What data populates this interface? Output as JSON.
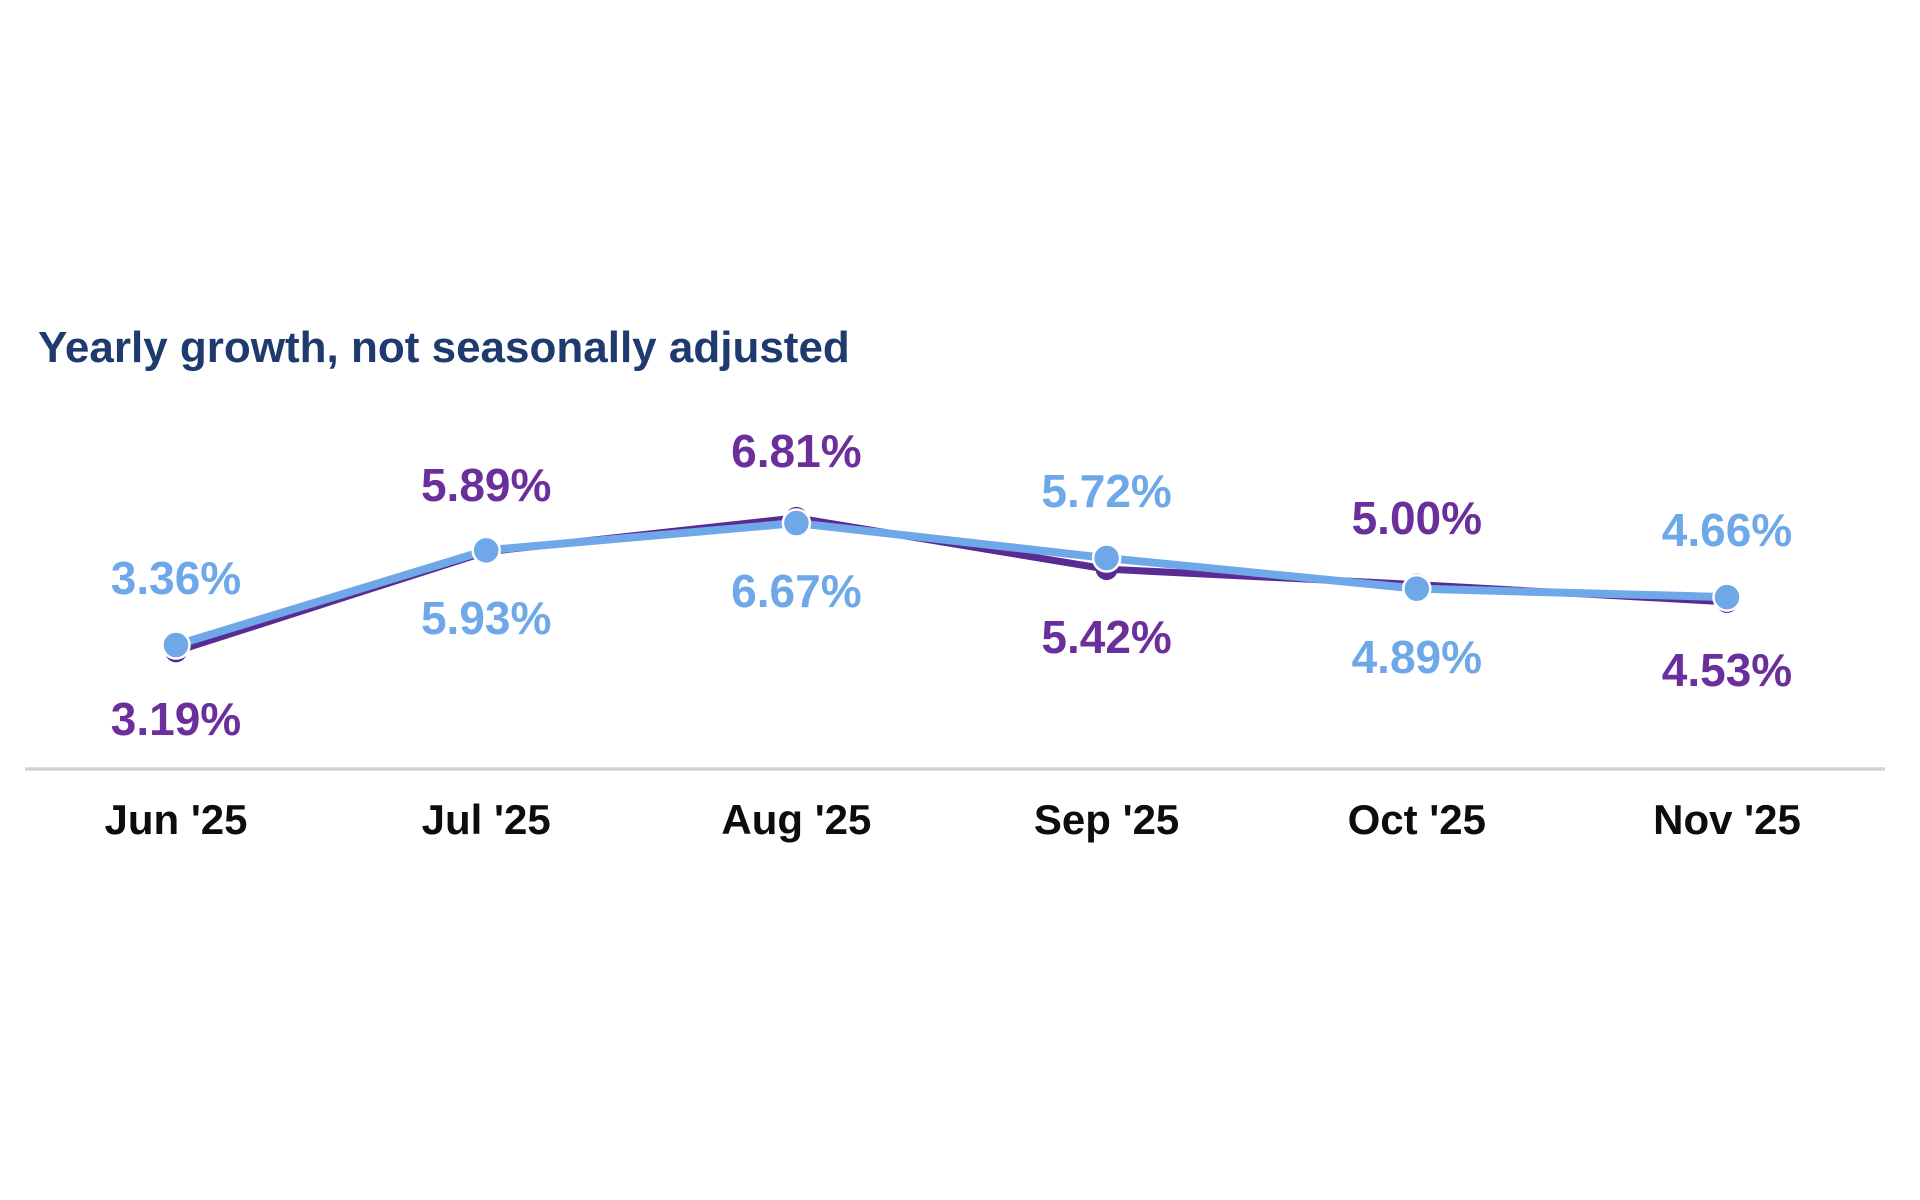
{
  "page": {
    "background": "#ffffff"
  },
  "chart_data": {
    "type": "line",
    "title": "Yearly growth, not seasonally adjusted",
    "title_color": "#1e3a6e",
    "categories": [
      "Jun '25",
      "Jul '25",
      "Aug '25",
      "Sep '25",
      "Oct '25",
      "Nov '25"
    ],
    "category_label_color": "#0d0d0d",
    "axis_line_color": "#d4d4d4",
    "grid": "off",
    "legend": "none",
    "ylim": [
      0,
      8
    ],
    "y_unit": "percent",
    "series": [
      {
        "name": "purple-series",
        "color": "#5b2b94",
        "label_color": "#6b2f9c",
        "values": [
          3.19,
          5.89,
          6.81,
          5.42,
          5.0,
          4.53
        ],
        "labels": [
          "3.19%",
          "5.89%",
          "6.81%",
          "5.42%",
          "5.00%",
          "4.53%"
        ],
        "label_positions": [
          "below",
          "above",
          "above",
          "below",
          "above",
          "below"
        ]
      },
      {
        "name": "blue-series",
        "color": "#6fa8e8",
        "label_color": "#6fa8e8",
        "values": [
          3.36,
          5.93,
          6.67,
          5.72,
          4.89,
          4.66
        ],
        "labels": [
          "3.36%",
          "5.93%",
          "6.67%",
          "5.72%",
          "4.89%",
          "4.66%"
        ],
        "label_positions": [
          "above",
          "below",
          "below",
          "above",
          "below",
          "above"
        ]
      }
    ]
  }
}
